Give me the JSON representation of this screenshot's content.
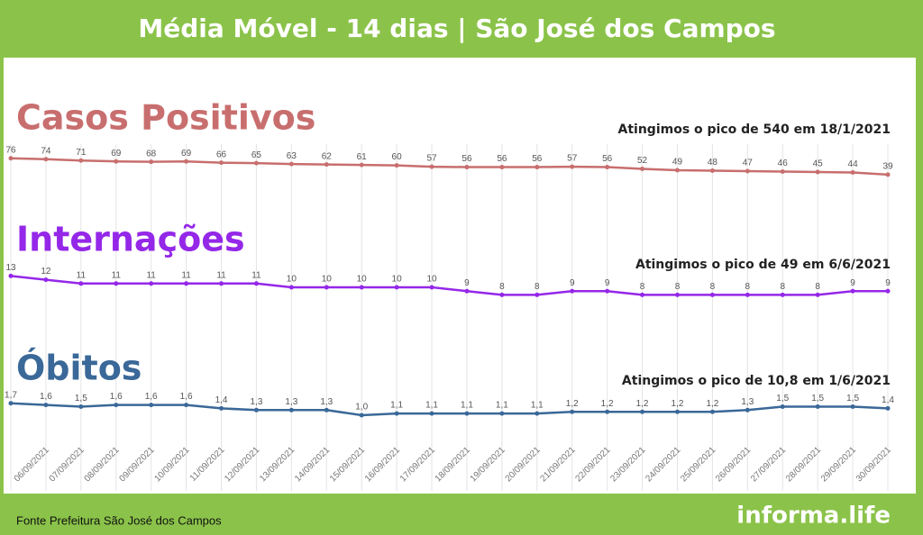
{
  "header": {
    "title": "Média Móvel - 14 dias | São José dos Campos"
  },
  "chart_data": [
    {
      "type": "line",
      "title": "Casos Positivos",
      "annotation": "Atingimos o pico de 540 em 18/1/2021",
      "color": "#c86e6e",
      "values": [
        76,
        74,
        71,
        69,
        68,
        69,
        66,
        65,
        63,
        62,
        61,
        60,
        57,
        56,
        56,
        56,
        57,
        56,
        52,
        49,
        48,
        47,
        46,
        45,
        44,
        39
      ],
      "ylim": [
        0,
        100
      ]
    },
    {
      "type": "line",
      "title": "Internações",
      "annotation": "Atingimos o pico de 49 em 6/6/2021",
      "color": "#9427e8",
      "values": [
        13,
        12,
        11,
        11,
        11,
        11,
        11,
        11,
        10,
        10,
        10,
        10,
        10,
        9,
        8,
        8,
        9,
        9,
        8,
        8,
        8,
        8,
        8,
        8,
        9,
        9
      ],
      "ylim": [
        0,
        20
      ]
    },
    {
      "type": "line",
      "title": "Óbitos",
      "annotation": "Atingimos o pico de 10,8 em 1/6/2021",
      "color": "#3a6898",
      "categories": [
        null,
        "06/09/2021",
        "07/09/2021",
        "08/09/2021",
        "09/09/2021",
        "10/09/2021",
        "11/09/2021",
        "12/09/2021",
        "13/09/2021",
        "14/09/2021",
        "15/09/2021",
        "16/09/2021",
        "17/09/2021",
        "18/09/2021",
        "19/09/2021",
        "20/09/2021",
        "21/09/2021",
        "22/09/2021",
        "23/09/2021",
        "24/09/2021",
        "25/09/2021",
        "26/09/2021",
        "27/09/2021",
        "28/09/2021",
        "29/09/2021",
        "30/09/2021"
      ],
      "values": [
        1.7,
        1.6,
        1.5,
        1.6,
        1.6,
        1.6,
        1.4,
        1.3,
        1.3,
        1.3,
        1.0,
        1.1,
        1.1,
        1.1,
        1.1,
        1.1,
        1.2,
        1.2,
        1.2,
        1.2,
        1.2,
        1.3,
        1.5,
        1.5,
        1.5,
        1.4
      ],
      "value_labels": [
        "1,7",
        "1,6",
        "1,5",
        "1,6",
        "1,6",
        "1,6",
        "1,4",
        "1,3",
        "1,3",
        "1,3",
        "1,0",
        "1,1",
        "1,1",
        "1,1",
        "1,1",
        "1,1",
        "1,2",
        "1,2",
        "1,2",
        "1,2",
        "1,2",
        "1,3",
        "1,5",
        "1,5",
        "1,5",
        "1,4"
      ],
      "ylim": [
        0,
        2
      ]
    }
  ],
  "footer": {
    "source": "Fonte Prefeitura São José dos Campos",
    "brand": "informa.life"
  }
}
